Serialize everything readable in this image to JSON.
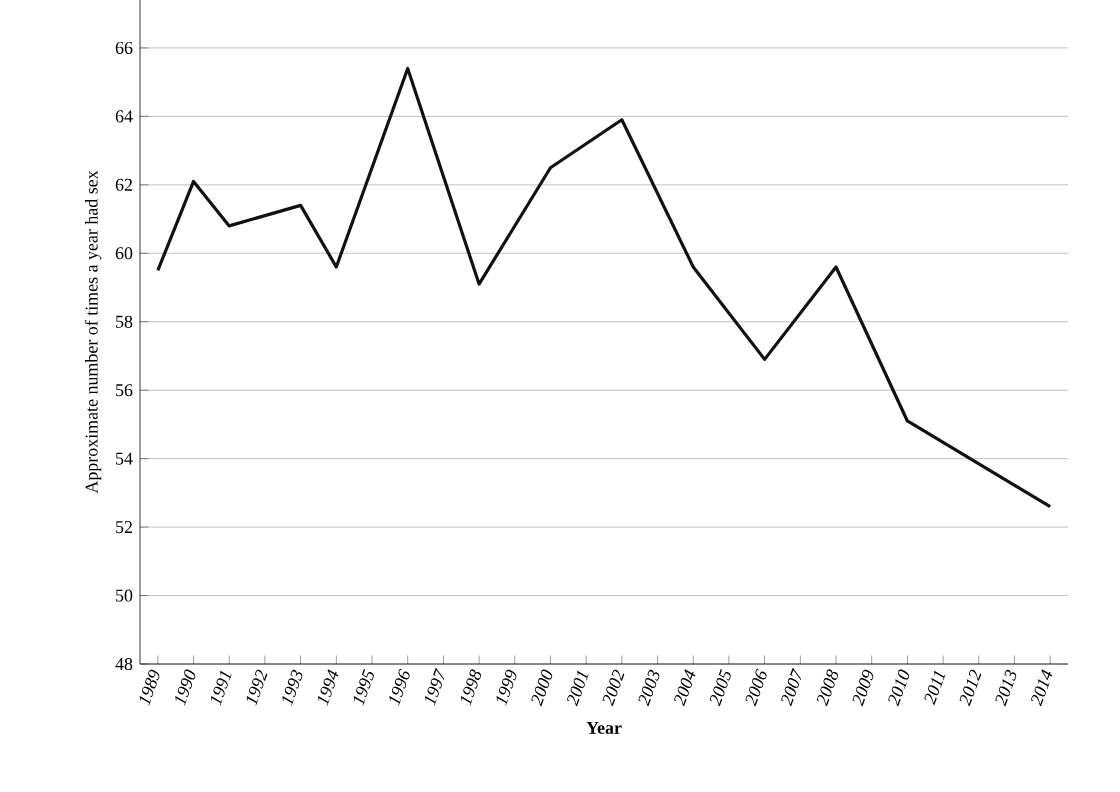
{
  "chart_data": {
    "type": "line",
    "xlabel": "Year",
    "ylabel": "Approximate number of times a year had sex",
    "x": [
      1989,
      1990,
      1991,
      1993,
      1994,
      1996,
      1998,
      2000,
      2002,
      2004,
      2006,
      2008,
      2010,
      2014
    ],
    "values": [
      59.5,
      62.1,
      60.8,
      61.4,
      59.6,
      65.4,
      59.1,
      62.5,
      63.9,
      59.6,
      56.9,
      59.6,
      55.1,
      52.6
    ],
    "color": "#111111",
    "line_style": "solid",
    "marker": "none",
    "grid": "y",
    "xlim": [
      1988.5,
      2014.5
    ],
    "xticks": [
      1989,
      1990,
      1991,
      1992,
      1993,
      1994,
      1995,
      1996,
      1997,
      1998,
      1999,
      2000,
      2001,
      2002,
      2003,
      2004,
      2005,
      2006,
      2007,
      2008,
      2009,
      2010,
      2011,
      2012,
      2013,
      2014
    ],
    "ylim": [
      48,
      67.4
    ],
    "yticks": [
      48,
      50,
      52,
      54,
      56,
      58,
      60,
      62,
      64,
      66
    ]
  }
}
